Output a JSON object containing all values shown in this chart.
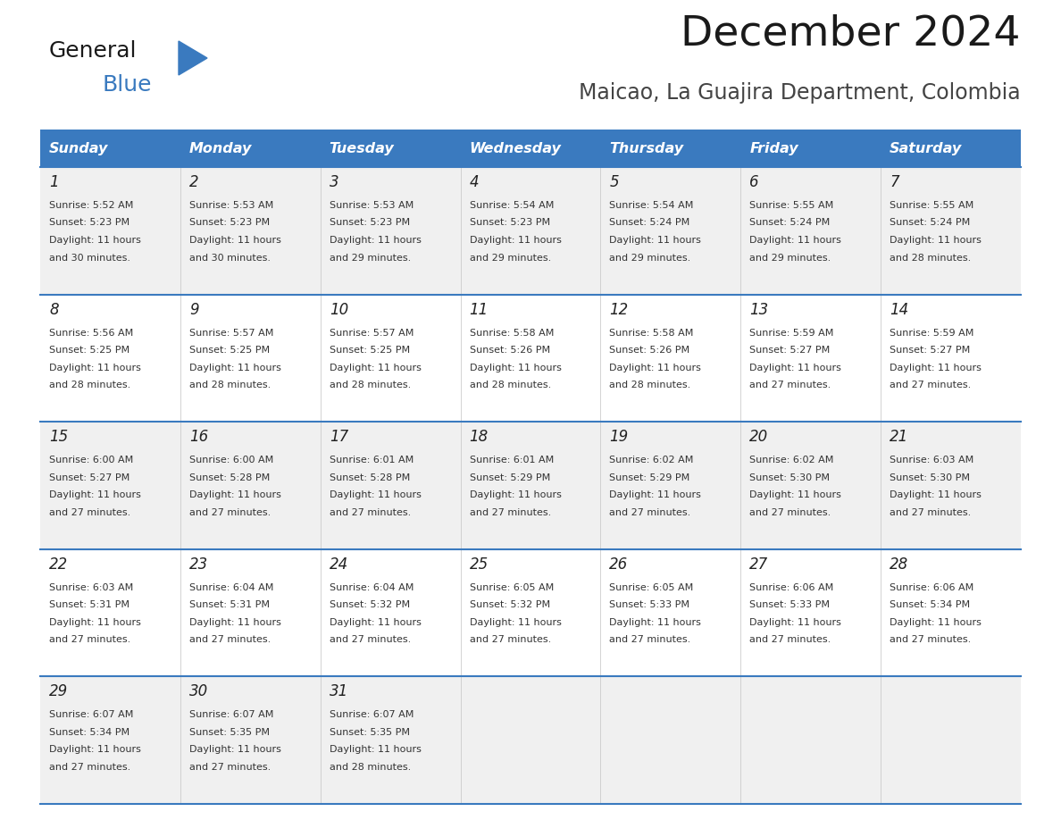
{
  "title": "December 2024",
  "subtitle": "Maicao, La Guajira Department, Colombia",
  "header_color": "#3a7abf",
  "header_text_color": "#ffffff",
  "cell_bg_white": "#ffffff",
  "cell_bg_gray": "#f0f0f0",
  "border_color": "#3a7abf",
  "text_color": "#333333",
  "day_number_color": "#222222",
  "day_names": [
    "Sunday",
    "Monday",
    "Tuesday",
    "Wednesday",
    "Thursday",
    "Friday",
    "Saturday"
  ],
  "weeks": [
    [
      {
        "day": 1,
        "sunrise": "5:52 AM",
        "sunset": "5:23 PM",
        "daylight_mins": "30"
      },
      {
        "day": 2,
        "sunrise": "5:53 AM",
        "sunset": "5:23 PM",
        "daylight_mins": "30"
      },
      {
        "day": 3,
        "sunrise": "5:53 AM",
        "sunset": "5:23 PM",
        "daylight_mins": "29"
      },
      {
        "day": 4,
        "sunrise": "5:54 AM",
        "sunset": "5:23 PM",
        "daylight_mins": "29"
      },
      {
        "day": 5,
        "sunrise": "5:54 AM",
        "sunset": "5:24 PM",
        "daylight_mins": "29"
      },
      {
        "day": 6,
        "sunrise": "5:55 AM",
        "sunset": "5:24 PM",
        "daylight_mins": "29"
      },
      {
        "day": 7,
        "sunrise": "5:55 AM",
        "sunset": "5:24 PM",
        "daylight_mins": "28"
      }
    ],
    [
      {
        "day": 8,
        "sunrise": "5:56 AM",
        "sunset": "5:25 PM",
        "daylight_mins": "28"
      },
      {
        "day": 9,
        "sunrise": "5:57 AM",
        "sunset": "5:25 PM",
        "daylight_mins": "28"
      },
      {
        "day": 10,
        "sunrise": "5:57 AM",
        "sunset": "5:25 PM",
        "daylight_mins": "28"
      },
      {
        "day": 11,
        "sunrise": "5:58 AM",
        "sunset": "5:26 PM",
        "daylight_mins": "28"
      },
      {
        "day": 12,
        "sunrise": "5:58 AM",
        "sunset": "5:26 PM",
        "daylight_mins": "28"
      },
      {
        "day": 13,
        "sunrise": "5:59 AM",
        "sunset": "5:27 PM",
        "daylight_mins": "27"
      },
      {
        "day": 14,
        "sunrise": "5:59 AM",
        "sunset": "5:27 PM",
        "daylight_mins": "27"
      }
    ],
    [
      {
        "day": 15,
        "sunrise": "6:00 AM",
        "sunset": "5:27 PM",
        "daylight_mins": "27"
      },
      {
        "day": 16,
        "sunrise": "6:00 AM",
        "sunset": "5:28 PM",
        "daylight_mins": "27"
      },
      {
        "day": 17,
        "sunrise": "6:01 AM",
        "sunset": "5:28 PM",
        "daylight_mins": "27"
      },
      {
        "day": 18,
        "sunrise": "6:01 AM",
        "sunset": "5:29 PM",
        "daylight_mins": "27"
      },
      {
        "day": 19,
        "sunrise": "6:02 AM",
        "sunset": "5:29 PM",
        "daylight_mins": "27"
      },
      {
        "day": 20,
        "sunrise": "6:02 AM",
        "sunset": "5:30 PM",
        "daylight_mins": "27"
      },
      {
        "day": 21,
        "sunrise": "6:03 AM",
        "sunset": "5:30 PM",
        "daylight_mins": "27"
      }
    ],
    [
      {
        "day": 22,
        "sunrise": "6:03 AM",
        "sunset": "5:31 PM",
        "daylight_mins": "27"
      },
      {
        "day": 23,
        "sunrise": "6:04 AM",
        "sunset": "5:31 PM",
        "daylight_mins": "27"
      },
      {
        "day": 24,
        "sunrise": "6:04 AM",
        "sunset": "5:32 PM",
        "daylight_mins": "27"
      },
      {
        "day": 25,
        "sunrise": "6:05 AM",
        "sunset": "5:32 PM",
        "daylight_mins": "27"
      },
      {
        "day": 26,
        "sunrise": "6:05 AM",
        "sunset": "5:33 PM",
        "daylight_mins": "27"
      },
      {
        "day": 27,
        "sunrise": "6:06 AM",
        "sunset": "5:33 PM",
        "daylight_mins": "27"
      },
      {
        "day": 28,
        "sunrise": "6:06 AM",
        "sunset": "5:34 PM",
        "daylight_mins": "27"
      }
    ],
    [
      {
        "day": 29,
        "sunrise": "6:07 AM",
        "sunset": "5:34 PM",
        "daylight_mins": "27"
      },
      {
        "day": 30,
        "sunrise": "6:07 AM",
        "sunset": "5:35 PM",
        "daylight_mins": "27"
      },
      {
        "day": 31,
        "sunrise": "6:07 AM",
        "sunset": "5:35 PM",
        "daylight_mins": "28"
      },
      null,
      null,
      null,
      null
    ]
  ]
}
